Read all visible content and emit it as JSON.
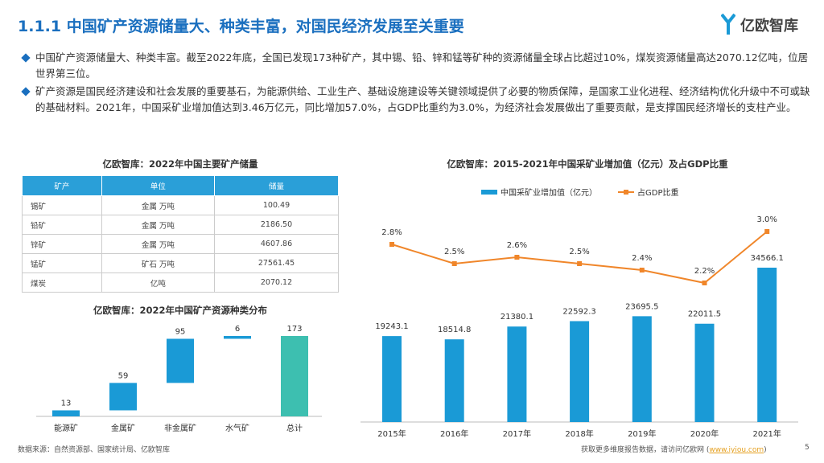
{
  "header": {
    "title": "1.1.1 中国矿产资源储量大、种类丰富，对国民经济发展至关重要",
    "logo": "亿欧智库"
  },
  "bullets": [
    "中国矿产资源储量大、种类丰富。截至2022年底，全国已发现173种矿产，其中锡、铅、锌和锰等矿种的资源储量全球占比超过10%，煤炭资源储量高达2070.12亿吨，位居世界第三位。",
    "矿产资源是国民经济建设和社会发展的重要基石，为能源供给、工业生产、基础设施建设等关键领域提供了必要的物质保障，是国家工业化进程、经济结构优化升级中不可或缺的基础材料。2021年，中国采矿业增加值达到3.46万亿元，同比增加57.0%，占GDP比重约为3.0%，为经济社会发展做出了重要贡献，是支撑国民经济增长的支柱产业。"
  ],
  "table": {
    "title": "亿欧智库：2022年中国主要矿产储量",
    "columns": [
      "矿产",
      "单位",
      "储量"
    ],
    "rows": [
      [
        "锡矿",
        "金属 万吨",
        "100.49"
      ],
      [
        "铅矿",
        "金属 万吨",
        "2186.50"
      ],
      [
        "锌矿",
        "金属 万吨",
        "4607.86"
      ],
      [
        "锰矿",
        "矿石 万吨",
        "27561.45"
      ],
      [
        "煤炭",
        "亿吨",
        "2070.12"
      ]
    ]
  },
  "chart_data": [
    {
      "type": "waterfall",
      "title": "亿欧智库：2022年中国矿产资源种类分布",
      "categories": [
        "能源矿",
        "金属矿",
        "非金属矿",
        "水气矿",
        "总计"
      ],
      "values": [
        13,
        59,
        95,
        6,
        173
      ],
      "color": "#1a9ad6",
      "total_color": "#3dbfb0",
      "last_is_total": true
    },
    {
      "type": "bar-line",
      "title": "亿欧智库：2015-2021年中国采矿业增加值（亿元）及占GDP比重",
      "categories": [
        "2015年",
        "2016年",
        "2017年",
        "2018年",
        "2019年",
        "2020年",
        "2021年"
      ],
      "series": [
        {
          "name": "中国采矿业增加值（亿元）",
          "color": "#1a9ad6",
          "type": "bar",
          "values": [
            19243.1,
            18514.8,
            21380.1,
            22592.3,
            23695.5,
            22011.5,
            34566.1
          ]
        },
        {
          "name": "占GDP比重",
          "color": "#f0862a",
          "type": "line",
          "axis": "y2",
          "values": [
            2.8,
            2.5,
            2.6,
            2.5,
            2.4,
            2.2,
            3.0
          ],
          "value_labels": [
            "2.8%",
            "2.5%",
            "2.6%",
            "2.5%",
            "2.4%",
            "2.2%",
            "3.0%"
          ]
        }
      ]
    }
  ],
  "footer": {
    "source": "数据来源：自然资源部、国家统计局、亿欧智库",
    "link_before": "获取更多维度报告数据，请访问亿欧网 (",
    "link": "www.iyiou.com",
    "link_after": ")",
    "page": "5"
  }
}
